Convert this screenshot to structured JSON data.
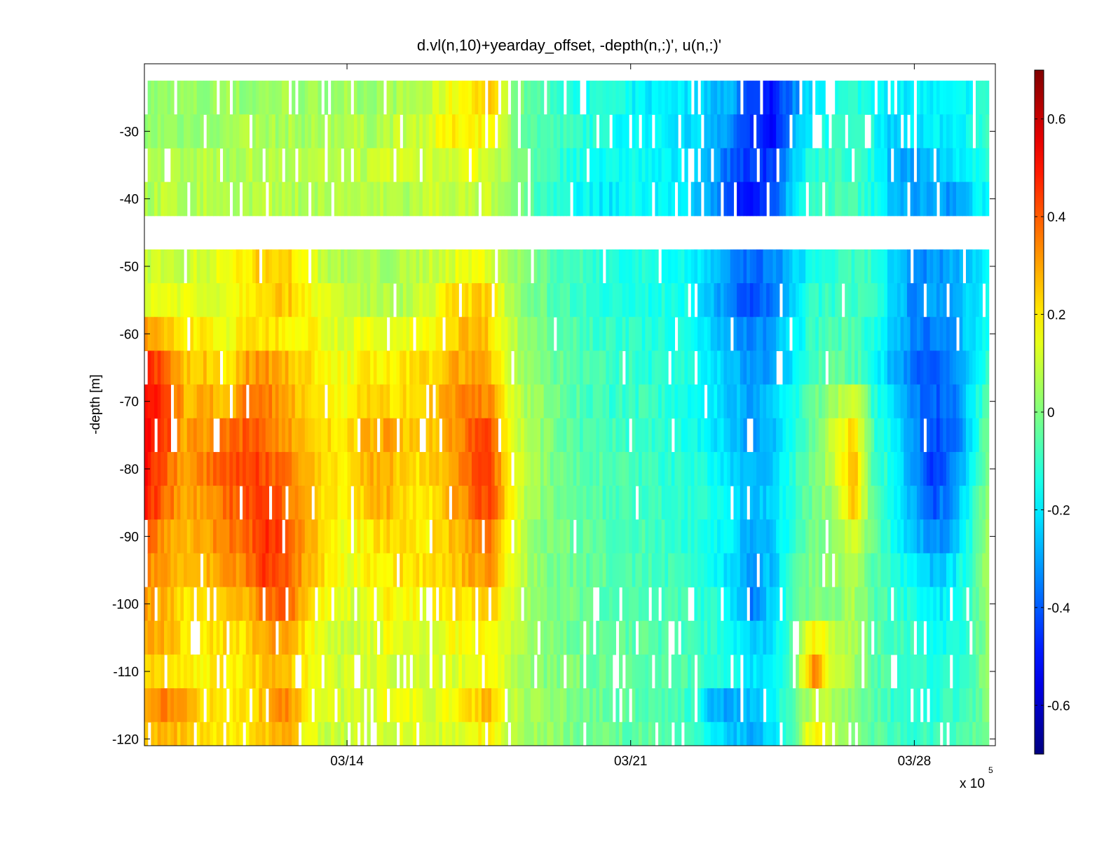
{
  "chart_data": {
    "type": "heatmap",
    "title": "d.vl(n,10)+yearday_offset, -depth(n,:)', u(n,:)'",
    "xlabel": "",
    "ylabel": "-depth [m]",
    "x_tick_labels": [
      "03/14",
      "03/21",
      "03/28"
    ],
    "x_exponent_label": "x 10",
    "x_exponent_power": "5",
    "y_ticks": [
      -30,
      -40,
      -50,
      -60,
      -70,
      -80,
      -90,
      -100,
      -110,
      -120
    ],
    "ylim": [
      -121,
      -20
    ],
    "x_range_days": [
      "03/09",
      "03/30"
    ],
    "colorbar": {
      "ticks": [
        0.6,
        0.4,
        0.2,
        0,
        -0.2,
        -0.4,
        -0.6
      ],
      "range": [
        -0.7,
        0.7
      ],
      "colormap": "jet"
    },
    "depth_bins": [
      -25,
      -30,
      -35,
      -40,
      -50,
      -55,
      -60,
      -65,
      -70,
      -75,
      -80,
      -85,
      -90,
      -95,
      -100,
      -105,
      -110,
      -115,
      -120
    ],
    "data_gap_depth_range": [
      -45,
      -41
    ],
    "time_anchor_days": [
      0,
      0.5,
      1,
      1.5,
      2,
      2.5,
      3,
      3.5,
      4,
      4.5,
      5,
      5.5,
      6,
      6.5,
      7,
      7.5,
      8,
      8.5,
      9,
      9.5,
      10,
      10.5,
      11,
      11.5,
      12,
      12.5,
      13,
      13.5,
      14,
      14.5,
      15,
      15.5,
      16,
      16.5,
      17,
      17.5,
      18,
      18.5,
      19,
      19.5,
      20,
      20.5,
      21
    ],
    "u_values_by_depth": [
      [
        0.02,
        0.02,
        0.03,
        0.02,
        0.04,
        0.02,
        0.04,
        0.05,
        0.03,
        0.04,
        0.05,
        0.04,
        0.05,
        0.06,
        0.08,
        0.15,
        0.2,
        0.25,
        0.05,
        -0.05,
        -0.08,
        -0.12,
        -0.15,
        -0.12,
        -0.18,
        -0.2,
        -0.18,
        -0.22,
        -0.25,
        -0.28,
        -0.45,
        -0.5,
        -0.35,
        -0.2,
        -0.15,
        -0.12,
        -0.15,
        -0.2,
        -0.18,
        -0.2,
        -0.2,
        -0.15,
        -0.1
      ],
      [
        0.02,
        0.04,
        0.03,
        0.05,
        0.04,
        0.05,
        0.05,
        0.06,
        0.05,
        0.06,
        0.08,
        0.06,
        0.08,
        0.1,
        0.12,
        0.18,
        0.2,
        0.18,
        0.05,
        -0.05,
        -0.08,
        -0.1,
        -0.12,
        -0.15,
        -0.18,
        -0.18,
        -0.2,
        -0.22,
        -0.25,
        -0.35,
        -0.48,
        -0.5,
        -0.3,
        -0.15,
        -0.12,
        -0.1,
        -0.15,
        -0.25,
        -0.2,
        -0.2,
        -0.18,
        -0.15,
        -0.1
      ],
      [
        0.05,
        0.06,
        0.05,
        0.08,
        0.06,
        0.08,
        0.06,
        0.08,
        0.06,
        0.08,
        0.1,
        0.08,
        0.1,
        0.12,
        0.1,
        0.12,
        0.15,
        0.12,
        0.04,
        -0.05,
        -0.1,
        -0.12,
        -0.15,
        -0.18,
        -0.15,
        -0.18,
        -0.2,
        -0.22,
        -0.28,
        -0.4,
        -0.45,
        -0.45,
        -0.25,
        -0.12,
        -0.1,
        -0.1,
        -0.15,
        -0.28,
        -0.3,
        -0.25,
        -0.2,
        -0.15,
        -0.1
      ],
      [
        0.06,
        0.08,
        0.06,
        0.08,
        0.08,
        0.06,
        0.08,
        0.06,
        0.08,
        0.06,
        0.08,
        0.06,
        0.08,
        0.06,
        0.1,
        0.1,
        0.08,
        0.1,
        0.02,
        -0.05,
        -0.1,
        -0.15,
        -0.18,
        -0.2,
        -0.15,
        -0.18,
        -0.2,
        -0.22,
        -0.3,
        -0.45,
        -0.5,
        -0.42,
        -0.22,
        -0.1,
        -0.08,
        -0.08,
        -0.15,
        -0.25,
        -0.3,
        -0.3,
        -0.32,
        -0.22,
        -0.12
      ],
      [
        0.1,
        0.12,
        0.1,
        0.12,
        0.15,
        0.2,
        0.25,
        0.25,
        0.15,
        0.08,
        0.05,
        0.06,
        0.05,
        0.06,
        0.1,
        0.12,
        0.15,
        0.15,
        0.05,
        0.0,
        -0.05,
        -0.08,
        -0.1,
        -0.12,
        -0.15,
        -0.12,
        -0.15,
        -0.18,
        -0.25,
        -0.35,
        -0.38,
        -0.35,
        -0.25,
        -0.15,
        -0.12,
        -0.1,
        -0.1,
        -0.25,
        -0.35,
        -0.32,
        -0.28,
        -0.25,
        -0.15
      ],
      [
        0.15,
        0.15,
        0.15,
        0.12,
        0.15,
        0.2,
        0.25,
        0.25,
        0.2,
        0.12,
        0.08,
        0.08,
        0.06,
        0.08,
        0.12,
        0.2,
        0.22,
        0.25,
        0.08,
        0.0,
        -0.05,
        -0.08,
        -0.1,
        -0.12,
        -0.15,
        -0.15,
        -0.12,
        -0.18,
        -0.25,
        -0.38,
        -0.42,
        -0.38,
        -0.22,
        -0.12,
        -0.1,
        -0.08,
        -0.12,
        -0.22,
        -0.35,
        -0.3,
        -0.28,
        -0.2,
        -0.1
      ],
      [
        0.3,
        0.25,
        0.2,
        0.2,
        0.15,
        0.2,
        0.22,
        0.2,
        0.2,
        0.15,
        0.12,
        0.15,
        0.12,
        0.15,
        0.18,
        0.22,
        0.28,
        0.25,
        0.1,
        0.02,
        -0.02,
        -0.05,
        -0.08,
        -0.1,
        -0.12,
        -0.12,
        -0.15,
        -0.15,
        -0.22,
        -0.3,
        -0.35,
        -0.3,
        -0.2,
        -0.1,
        -0.08,
        -0.05,
        -0.15,
        -0.25,
        -0.35,
        -0.35,
        -0.32,
        -0.2,
        -0.1
      ],
      [
        0.5,
        0.4,
        0.25,
        0.25,
        0.2,
        0.3,
        0.32,
        0.28,
        0.22,
        0.18,
        0.15,
        0.2,
        0.18,
        0.2,
        0.22,
        0.28,
        0.3,
        0.28,
        0.1,
        0.03,
        -0.02,
        -0.05,
        -0.08,
        -0.1,
        -0.1,
        -0.12,
        -0.12,
        -0.15,
        -0.2,
        -0.28,
        -0.32,
        -0.28,
        -0.2,
        -0.08,
        -0.05,
        -0.05,
        -0.15,
        -0.28,
        -0.38,
        -0.42,
        -0.35,
        -0.18,
        -0.08
      ],
      [
        0.55,
        0.45,
        0.28,
        0.3,
        0.25,
        0.35,
        0.35,
        0.3,
        0.25,
        0.2,
        0.18,
        0.25,
        0.22,
        0.22,
        0.25,
        0.3,
        0.35,
        0.35,
        0.12,
        0.05,
        0.0,
        -0.05,
        -0.08,
        -0.1,
        -0.1,
        -0.1,
        -0.12,
        -0.15,
        -0.2,
        -0.25,
        -0.3,
        -0.25,
        -0.15,
        -0.05,
        0.05,
        0.15,
        -0.12,
        -0.25,
        -0.35,
        -0.4,
        -0.35,
        -0.15,
        -0.05
      ],
      [
        0.55,
        0.45,
        0.3,
        0.32,
        0.35,
        0.4,
        0.38,
        0.32,
        0.25,
        0.22,
        0.2,
        0.28,
        0.3,
        0.25,
        0.25,
        0.3,
        0.38,
        0.45,
        0.15,
        0.05,
        0.0,
        -0.05,
        -0.08,
        -0.08,
        -0.1,
        -0.1,
        -0.12,
        -0.15,
        -0.2,
        -0.25,
        -0.32,
        -0.25,
        -0.15,
        -0.05,
        0.1,
        0.25,
        -0.1,
        -0.2,
        -0.32,
        -0.42,
        -0.38,
        -0.15,
        0.05
      ],
      [
        0.52,
        0.4,
        0.3,
        0.35,
        0.4,
        0.45,
        0.42,
        0.35,
        0.28,
        0.22,
        0.2,
        0.28,
        0.28,
        0.22,
        0.22,
        0.3,
        0.38,
        0.45,
        0.18,
        0.06,
        0.0,
        -0.05,
        -0.05,
        -0.08,
        -0.08,
        -0.1,
        -0.12,
        -0.12,
        -0.18,
        -0.22,
        -0.28,
        -0.25,
        -0.12,
        -0.02,
        0.08,
        0.28,
        -0.08,
        -0.15,
        -0.32,
        -0.45,
        -0.35,
        -0.12,
        0.1
      ],
      [
        0.5,
        0.38,
        0.3,
        0.32,
        0.38,
        0.42,
        0.45,
        0.38,
        0.3,
        0.2,
        0.18,
        0.25,
        0.28,
        0.22,
        0.2,
        0.28,
        0.35,
        0.45,
        0.2,
        0.06,
        0.0,
        -0.05,
        -0.05,
        -0.08,
        -0.08,
        -0.1,
        -0.1,
        -0.12,
        -0.15,
        -0.2,
        -0.28,
        -0.22,
        -0.12,
        -0.02,
        0.05,
        0.25,
        -0.05,
        -0.15,
        -0.3,
        -0.4,
        -0.3,
        -0.1,
        0.12
      ],
      [
        0.42,
        0.32,
        0.28,
        0.3,
        0.35,
        0.38,
        0.48,
        0.42,
        0.3,
        0.2,
        0.15,
        0.2,
        0.22,
        0.2,
        0.2,
        0.25,
        0.3,
        0.38,
        0.18,
        0.05,
        0.0,
        -0.02,
        -0.05,
        -0.08,
        -0.08,
        -0.08,
        -0.1,
        -0.12,
        -0.15,
        -0.2,
        -0.3,
        -0.25,
        -0.12,
        -0.02,
        0.02,
        0.15,
        -0.05,
        -0.15,
        -0.25,
        -0.35,
        -0.28,
        -0.08,
        0.15
      ],
      [
        0.35,
        0.3,
        0.25,
        0.28,
        0.3,
        0.35,
        0.45,
        0.42,
        0.28,
        0.2,
        0.15,
        0.18,
        0.2,
        0.22,
        0.2,
        0.22,
        0.28,
        0.35,
        0.15,
        0.05,
        0.0,
        -0.02,
        -0.05,
        -0.05,
        -0.08,
        -0.08,
        -0.1,
        -0.1,
        -0.15,
        -0.22,
        -0.32,
        -0.25,
        -0.1,
        0.0,
        0.02,
        0.08,
        -0.05,
        -0.12,
        -0.2,
        -0.25,
        -0.2,
        -0.05,
        0.12
      ],
      [
        0.3,
        0.28,
        0.22,
        0.22,
        0.25,
        0.28,
        0.38,
        0.4,
        0.25,
        0.15,
        0.12,
        0.15,
        0.18,
        0.18,
        0.15,
        0.2,
        0.22,
        0.25,
        0.12,
        0.05,
        0.0,
        -0.02,
        -0.05,
        -0.05,
        -0.05,
        -0.08,
        -0.08,
        -0.1,
        -0.12,
        -0.2,
        -0.35,
        -0.22,
        -0.08,
        0.0,
        0.02,
        0.05,
        -0.05,
        -0.1,
        -0.15,
        -0.2,
        -0.18,
        -0.05,
        0.1
      ],
      [
        0.28,
        0.28,
        0.2,
        0.2,
        0.22,
        0.22,
        0.3,
        0.3,
        0.2,
        0.12,
        0.1,
        0.12,
        0.15,
        0.15,
        0.12,
        0.15,
        0.18,
        0.2,
        0.1,
        0.05,
        0.0,
        -0.02,
        -0.02,
        -0.05,
        -0.05,
        -0.05,
        -0.08,
        -0.08,
        -0.12,
        -0.15,
        -0.25,
        -0.2,
        -0.05,
        0.2,
        0.1,
        0.05,
        -0.05,
        -0.08,
        -0.1,
        -0.15,
        -0.15,
        -0.05,
        0.08
      ],
      [
        0.25,
        0.25,
        0.2,
        0.18,
        0.2,
        0.2,
        0.25,
        0.28,
        0.18,
        0.12,
        0.1,
        0.12,
        0.12,
        0.12,
        0.1,
        0.12,
        0.15,
        0.18,
        0.1,
        0.05,
        0.0,
        0.0,
        -0.02,
        -0.05,
        -0.05,
        -0.05,
        -0.05,
        -0.08,
        -0.1,
        -0.15,
        -0.22,
        -0.18,
        -0.05,
        0.35,
        0.1,
        0.05,
        -0.05,
        -0.08,
        -0.1,
        -0.12,
        -0.12,
        -0.05,
        0.05
      ],
      [
        0.3,
        0.35,
        0.28,
        0.22,
        0.22,
        0.2,
        0.28,
        0.35,
        0.2,
        0.12,
        0.1,
        0.12,
        0.15,
        0.15,
        0.12,
        0.15,
        0.2,
        0.28,
        0.1,
        0.05,
        0.02,
        0.0,
        -0.02,
        -0.05,
        -0.05,
        -0.05,
        -0.08,
        -0.1,
        -0.28,
        -0.3,
        -0.25,
        -0.2,
        -0.05,
        0.1,
        0.05,
        0.0,
        -0.05,
        -0.1,
        -0.12,
        -0.12,
        -0.1,
        -0.05,
        0.05
      ],
      [
        0.25,
        0.28,
        0.25,
        0.2,
        0.2,
        0.18,
        0.25,
        0.32,
        0.15,
        0.1,
        0.1,
        0.1,
        0.12,
        0.12,
        0.12,
        0.12,
        0.15,
        0.2,
        0.08,
        0.05,
        0.02,
        0.0,
        -0.02,
        -0.02,
        -0.05,
        -0.05,
        -0.05,
        -0.08,
        -0.2,
        -0.25,
        -0.28,
        -0.22,
        -0.05,
        0.2,
        0.05,
        0.0,
        -0.05,
        -0.08,
        -0.1,
        -0.1,
        -0.08,
        -0.05,
        0.05
      ]
    ]
  }
}
